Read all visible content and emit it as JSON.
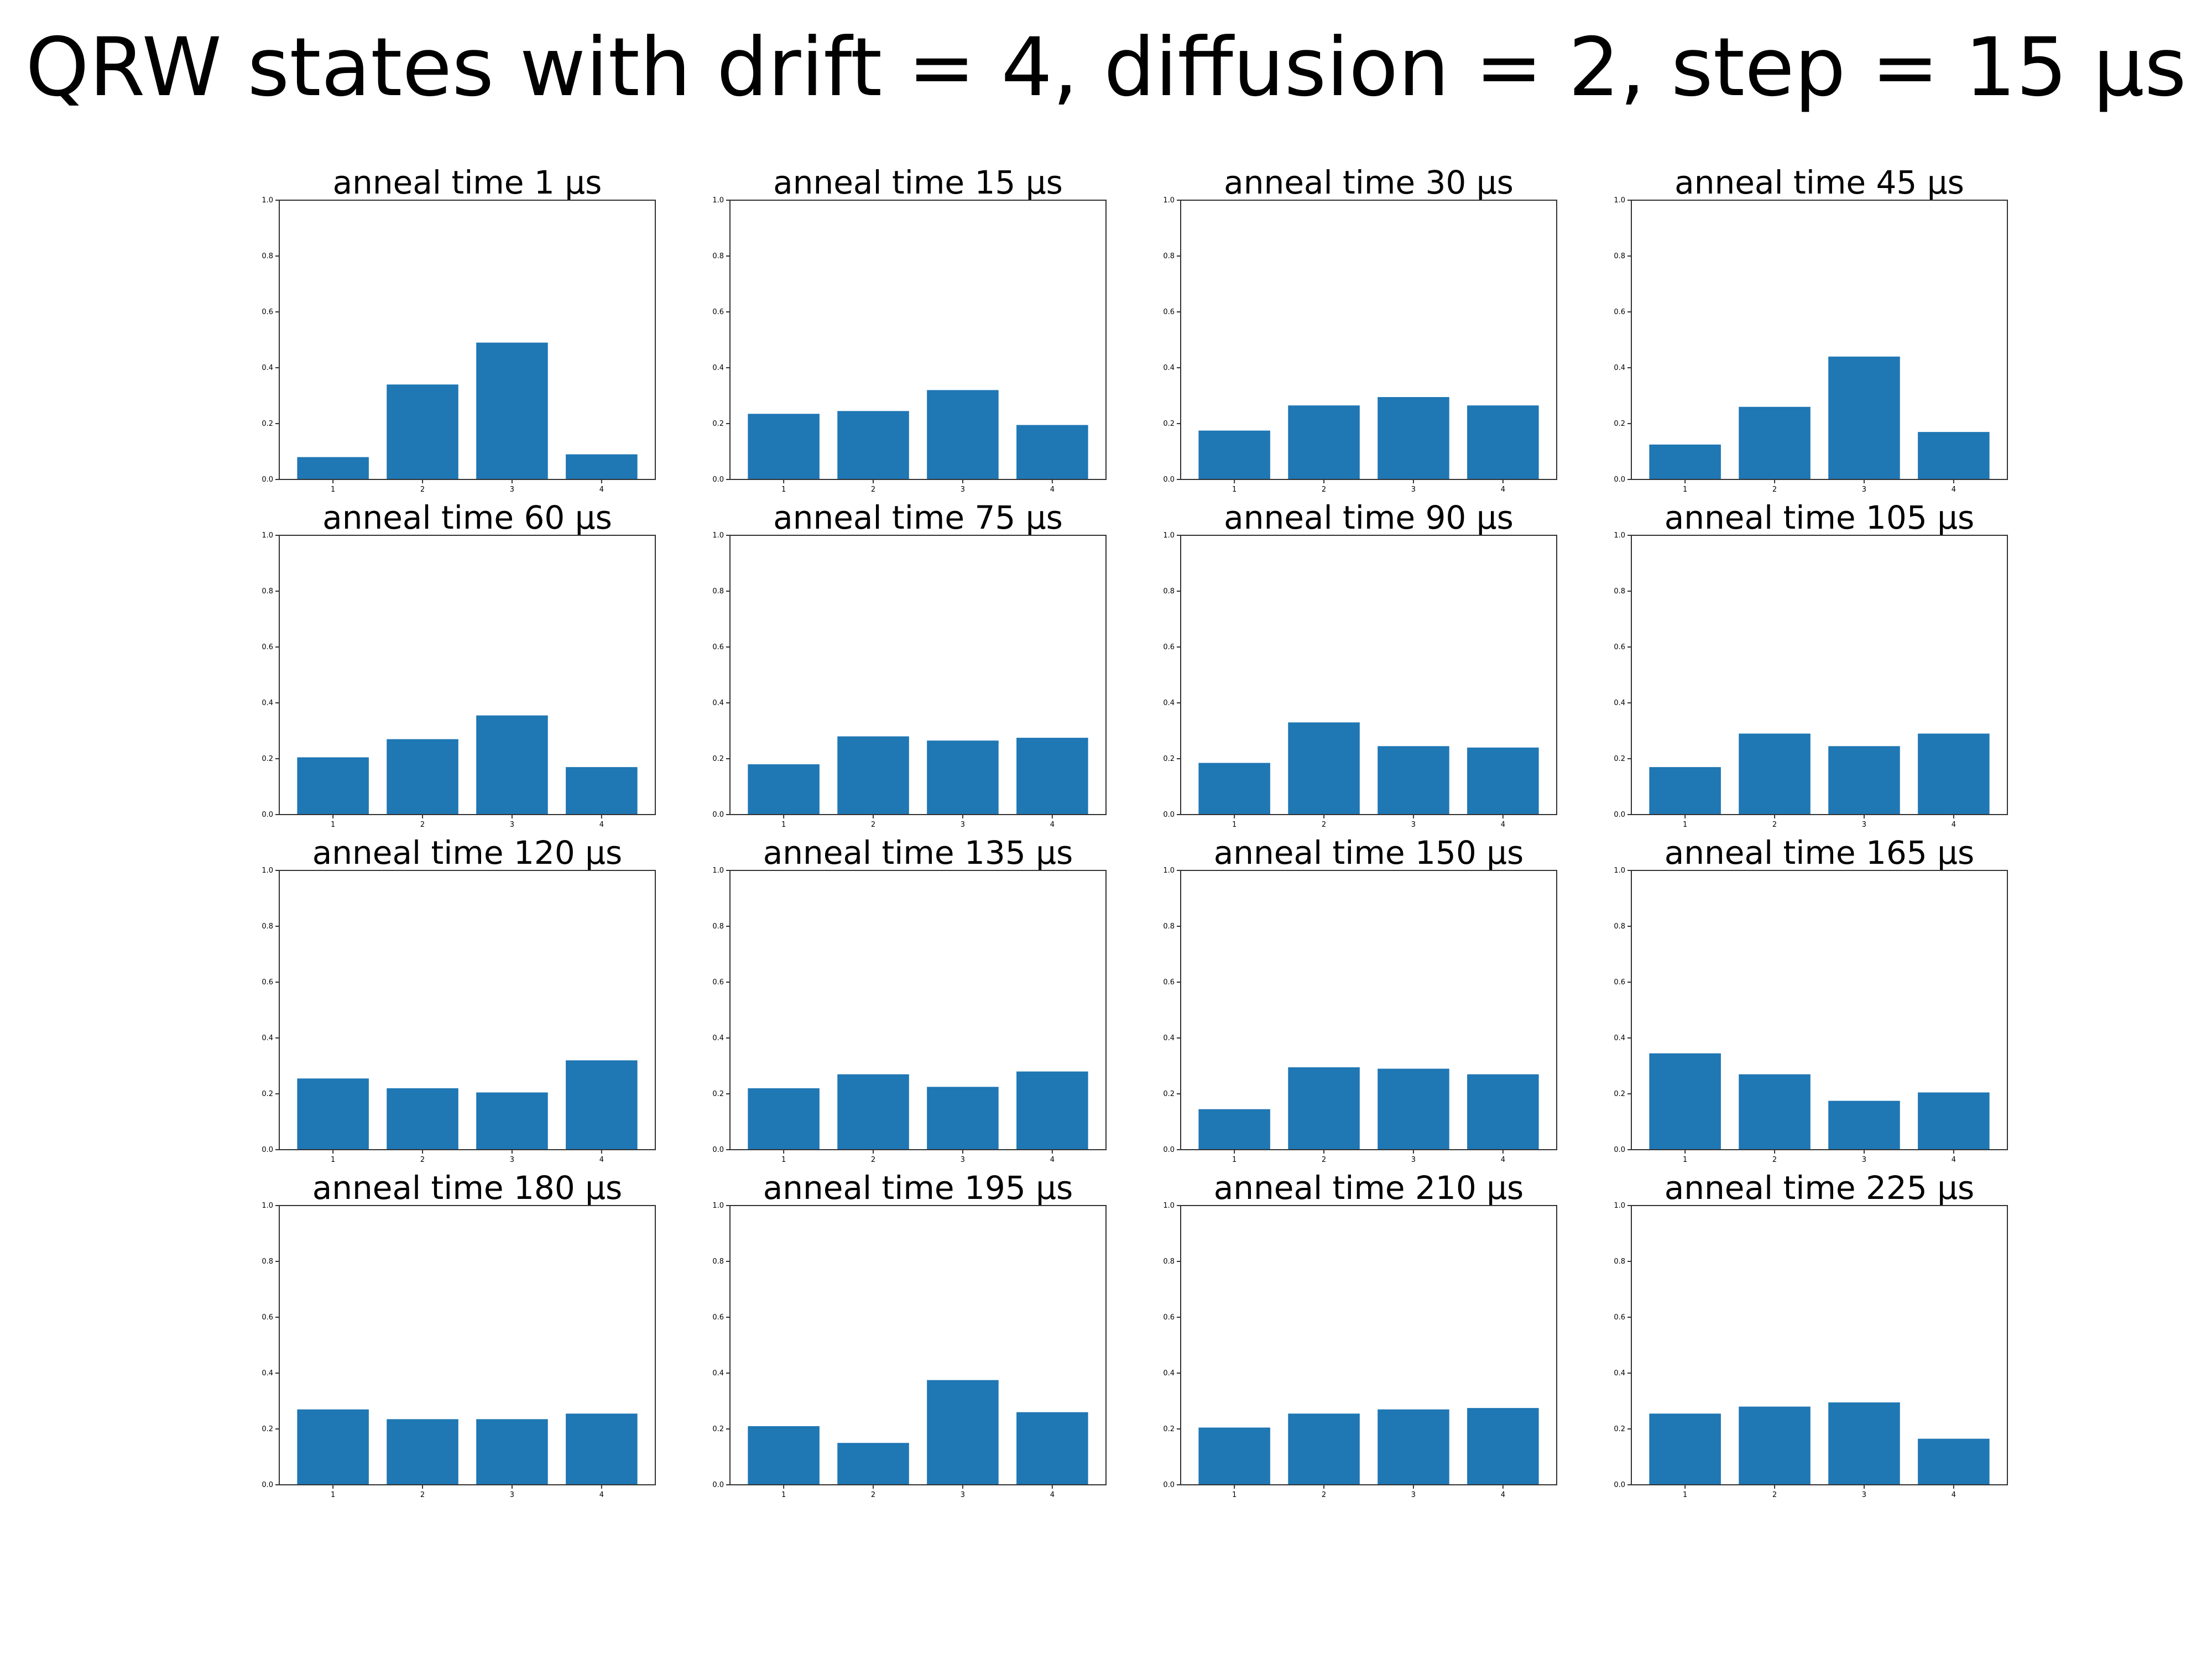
{
  "figure": {
    "title": "QRW states with drift = 4, diffusion = 2, step = 15 μs",
    "bar_color": "#1f77b4"
  },
  "chart_data": [
    {
      "type": "bar",
      "title": "anneal time 1 μs",
      "categories": [
        "1",
        "2",
        "3",
        "4"
      ],
      "values": [
        0.08,
        0.34,
        0.49,
        0.09
      ],
      "ylim": [
        0,
        1
      ],
      "yticks": [
        "0.0",
        "0.2",
        "0.4",
        "0.6",
        "0.8",
        "1.0"
      ]
    },
    {
      "type": "bar",
      "title": "anneal time 15 μs",
      "categories": [
        "1",
        "2",
        "3",
        "4"
      ],
      "values": [
        0.235,
        0.245,
        0.32,
        0.195
      ],
      "ylim": [
        0,
        1
      ],
      "yticks": [
        "0.0",
        "0.2",
        "0.4",
        "0.6",
        "0.8",
        "1.0"
      ]
    },
    {
      "type": "bar",
      "title": "anneal time 30 μs",
      "categories": [
        "1",
        "2",
        "3",
        "4"
      ],
      "values": [
        0.175,
        0.265,
        0.295,
        0.265
      ],
      "ylim": [
        0,
        1
      ],
      "yticks": [
        "0.0",
        "0.2",
        "0.4",
        "0.6",
        "0.8",
        "1.0"
      ]
    },
    {
      "type": "bar",
      "title": "anneal time 45 μs",
      "categories": [
        "1",
        "2",
        "3",
        "4"
      ],
      "values": [
        0.125,
        0.26,
        0.44,
        0.17
      ],
      "ylim": [
        0,
        1
      ],
      "yticks": [
        "0.0",
        "0.2",
        "0.4",
        "0.6",
        "0.8",
        "1.0"
      ]
    },
    {
      "type": "bar",
      "title": "anneal time 60 μs",
      "categories": [
        "1",
        "2",
        "3",
        "4"
      ],
      "values": [
        0.205,
        0.27,
        0.355,
        0.17
      ],
      "ylim": [
        0,
        1
      ],
      "yticks": [
        "0.0",
        "0.2",
        "0.4",
        "0.6",
        "0.8",
        "1.0"
      ]
    },
    {
      "type": "bar",
      "title": "anneal time 75 μs",
      "categories": [
        "1",
        "2",
        "3",
        "4"
      ],
      "values": [
        0.18,
        0.28,
        0.265,
        0.275
      ],
      "ylim": [
        0,
        1
      ],
      "yticks": [
        "0.0",
        "0.2",
        "0.4",
        "0.6",
        "0.8",
        "1.0"
      ]
    },
    {
      "type": "bar",
      "title": "anneal time 90 μs",
      "categories": [
        "1",
        "2",
        "3",
        "4"
      ],
      "values": [
        0.185,
        0.33,
        0.245,
        0.24
      ],
      "ylim": [
        0,
        1
      ],
      "yticks": [
        "0.0",
        "0.2",
        "0.4",
        "0.6",
        "0.8",
        "1.0"
      ]
    },
    {
      "type": "bar",
      "title": "anneal time 105 μs",
      "categories": [
        "1",
        "2",
        "3",
        "4"
      ],
      "values": [
        0.17,
        0.29,
        0.245,
        0.29
      ],
      "ylim": [
        0,
        1
      ],
      "yticks": [
        "0.0",
        "0.2",
        "0.4",
        "0.6",
        "0.8",
        "1.0"
      ]
    },
    {
      "type": "bar",
      "title": "anneal time 120 μs",
      "categories": [
        "1",
        "2",
        "3",
        "4"
      ],
      "values": [
        0.255,
        0.22,
        0.205,
        0.32
      ],
      "ylim": [
        0,
        1
      ],
      "yticks": [
        "0.0",
        "0.2",
        "0.4",
        "0.6",
        "0.8",
        "1.0"
      ]
    },
    {
      "type": "bar",
      "title": "anneal time 135 μs",
      "categories": [
        "1",
        "2",
        "3",
        "4"
      ],
      "values": [
        0.22,
        0.27,
        0.225,
        0.28
      ],
      "ylim": [
        0,
        1
      ],
      "yticks": [
        "0.0",
        "0.2",
        "0.4",
        "0.6",
        "0.8",
        "1.0"
      ]
    },
    {
      "type": "bar",
      "title": "anneal time 150 μs",
      "categories": [
        "1",
        "2",
        "3",
        "4"
      ],
      "values": [
        0.145,
        0.295,
        0.29,
        0.27
      ],
      "ylim": [
        0,
        1
      ],
      "yticks": [
        "0.0",
        "0.2",
        "0.4",
        "0.6",
        "0.8",
        "1.0"
      ]
    },
    {
      "type": "bar",
      "title": "anneal time 165 μs",
      "categories": [
        "1",
        "2",
        "3",
        "4"
      ],
      "values": [
        0.345,
        0.27,
        0.175,
        0.205
      ],
      "ylim": [
        0,
        1
      ],
      "yticks": [
        "0.0",
        "0.2",
        "0.4",
        "0.6",
        "0.8",
        "1.0"
      ]
    },
    {
      "type": "bar",
      "title": "anneal time 180 μs",
      "categories": [
        "1",
        "2",
        "3",
        "4"
      ],
      "values": [
        0.27,
        0.235,
        0.235,
        0.255
      ],
      "ylim": [
        0,
        1
      ],
      "yticks": [
        "0.0",
        "0.2",
        "0.4",
        "0.6",
        "0.8",
        "1.0"
      ]
    },
    {
      "type": "bar",
      "title": "anneal time 195 μs",
      "categories": [
        "1",
        "2",
        "3",
        "4"
      ],
      "values": [
        0.21,
        0.15,
        0.375,
        0.26
      ],
      "ylim": [
        0,
        1
      ],
      "yticks": [
        "0.0",
        "0.2",
        "0.4",
        "0.6",
        "0.8",
        "1.0"
      ]
    },
    {
      "type": "bar",
      "title": "anneal time 210 μs",
      "categories": [
        "1",
        "2",
        "3",
        "4"
      ],
      "values": [
        0.205,
        0.255,
        0.27,
        0.275
      ],
      "ylim": [
        0,
        1
      ],
      "yticks": [
        "0.0",
        "0.2",
        "0.4",
        "0.6",
        "0.8",
        "1.0"
      ]
    },
    {
      "type": "bar",
      "title": "anneal time 225 μs",
      "categories": [
        "1",
        "2",
        "3",
        "4"
      ],
      "values": [
        0.255,
        0.28,
        0.295,
        0.165
      ],
      "ylim": [
        0,
        1
      ],
      "yticks": [
        "0.0",
        "0.2",
        "0.4",
        "0.6",
        "0.8",
        "1.0"
      ]
    }
  ]
}
